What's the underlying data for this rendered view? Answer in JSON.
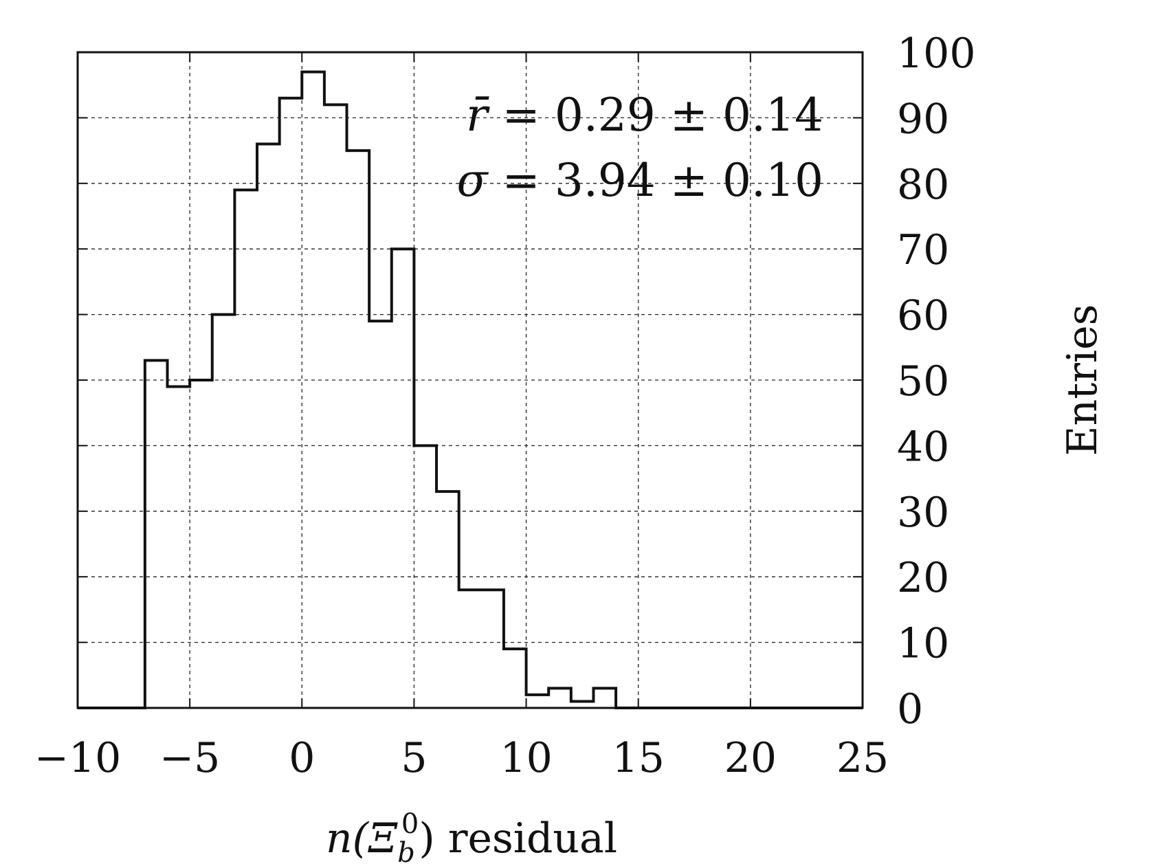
{
  "chart_data": {
    "type": "histogram",
    "title": "",
    "xlabel": "n(Ξᵇ⁰) residual",
    "xlabel_parts": {
      "var": "n(",
      "symbol": "Ξ",
      "sub": "b",
      "sup": "0",
      "close": ")",
      "word": " residual"
    },
    "ylabel": "Entries",
    "xlim": [
      -10,
      25
    ],
    "ylim": [
      0,
      100
    ],
    "xticks": [
      -10,
      -5,
      0,
      5,
      10,
      15,
      20,
      25
    ],
    "xtick_labels": [
      "−10",
      "−5",
      "0",
      "5",
      "10",
      "15",
      "20",
      "25"
    ],
    "yticks": [
      0,
      10,
      20,
      30,
      40,
      50,
      60,
      70,
      80,
      90,
      100
    ],
    "ytick_labels": [
      "0",
      "10",
      "20",
      "30",
      "40",
      "50",
      "60",
      "70",
      "80",
      "90",
      "100"
    ],
    "y_axis_side": "right",
    "grid": true,
    "bin_width": 1,
    "bins": [
      {
        "x0": -10,
        "x1": -7,
        "count": 0
      },
      {
        "x0": -7,
        "x1": -6,
        "count": 53
      },
      {
        "x0": -6,
        "x1": -5,
        "count": 49
      },
      {
        "x0": -5,
        "x1": -4,
        "count": 50
      },
      {
        "x0": -4,
        "x1": -3,
        "count": 60
      },
      {
        "x0": -3,
        "x1": -2,
        "count": 79
      },
      {
        "x0": -2,
        "x1": -1,
        "count": 86
      },
      {
        "x0": -1,
        "x1": 0,
        "count": 93
      },
      {
        "x0": 0,
        "x1": 1,
        "count": 97
      },
      {
        "x0": 1,
        "x1": 2,
        "count": 92
      },
      {
        "x0": 2,
        "x1": 3,
        "count": 85
      },
      {
        "x0": 3,
        "x1": 4,
        "count": 59
      },
      {
        "x0": 4,
        "x1": 5,
        "count": 70
      },
      {
        "x0": 5,
        "x1": 6,
        "count": 40
      },
      {
        "x0": 6,
        "x1": 7,
        "count": 33
      },
      {
        "x0": 7,
        "x1": 8,
        "count": 18
      },
      {
        "x0": 8,
        "x1": 9,
        "count": 18
      },
      {
        "x0": 9,
        "x1": 10,
        "count": 9
      },
      {
        "x0": 10,
        "x1": 11,
        "count": 2
      },
      {
        "x0": 11,
        "x1": 12,
        "count": 3
      },
      {
        "x0": 12,
        "x1": 13,
        "count": 1
      },
      {
        "x0": 13,
        "x1": 14,
        "count": 3
      },
      {
        "x0": 14,
        "x1": 25,
        "count": 0
      }
    ],
    "annotations": {
      "mean": {
        "symbol": "r̄",
        "eq": " = 0.29 ± 0.14"
      },
      "sigma": {
        "symbol": "σ",
        "eq": " = 3.94 ± 0.10"
      }
    },
    "colors": {
      "line": "#111111",
      "grid": "#222222",
      "background": "#ffffff"
    }
  }
}
